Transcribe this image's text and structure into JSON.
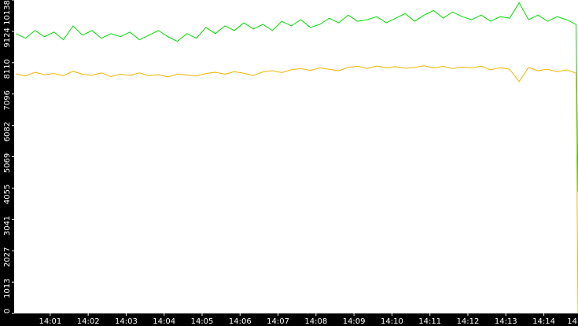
{
  "chart_data": {
    "type": "line",
    "x": [
      840.1,
      840.35,
      840.6,
      840.85,
      841.1,
      841.35,
      841.6,
      841.85,
      842.1,
      842.35,
      842.6,
      842.85,
      843.1,
      843.35,
      843.6,
      843.85,
      844.1,
      844.35,
      844.6,
      844.85,
      845.1,
      845.35,
      845.6,
      845.85,
      846.1,
      846.35,
      846.6,
      846.85,
      847.1,
      847.35,
      847.6,
      847.85,
      848.1,
      848.35,
      848.6,
      848.85,
      849.1,
      849.35,
      849.6,
      849.85,
      850.1,
      850.35,
      850.6,
      850.85,
      851.1,
      851.35,
      851.6,
      851.85,
      852.1,
      852.35,
      852.6,
      852.85,
      853.1,
      853.35,
      853.6,
      853.85,
      854.1,
      854.35,
      854.6,
      854.85,
      854.9
    ],
    "series": [
      {
        "color": "#00dd00",
        "values": [
          9050,
          8900,
          9150,
          8950,
          9100,
          8850,
          9300,
          9000,
          9150,
          8900,
          9050,
          8950,
          9100,
          8850,
          9000,
          9150,
          8950,
          8800,
          9050,
          8900,
          9250,
          9050,
          9300,
          9150,
          9400,
          9200,
          9350,
          9150,
          9450,
          9300,
          9500,
          9250,
          9350,
          9550,
          9400,
          9650,
          9450,
          9500,
          9600,
          9400,
          9550,
          9700,
          9450,
          9650,
          9800,
          9550,
          9750,
          9600,
          9500,
          9650,
          9450,
          9600,
          9550,
          10050,
          9500,
          9650,
          9450,
          9600,
          9500,
          9350,
          3940
        ]
      },
      {
        "color": "#f0b400",
        "values": [
          7750,
          7680,
          7800,
          7720,
          7760,
          7690,
          7830,
          7740,
          7700,
          7780,
          7660,
          7740,
          7700,
          7780,
          7690,
          7720,
          7650,
          7740,
          7710,
          7680,
          7760,
          7800,
          7740,
          7820,
          7770,
          7700,
          7810,
          7850,
          7790,
          7880,
          7920,
          7860,
          7940,
          7900,
          7850,
          7960,
          7990,
          7920,
          8000,
          7950,
          7980,
          7930,
          7960,
          8010,
          7940,
          7990,
          7920,
          7970,
          7940,
          8000,
          7880,
          7950,
          7900,
          7500,
          7960,
          7850,
          7900,
          7820,
          7880,
          7770,
          0
        ]
      }
    ],
    "xlim": [
      840.05,
      854.9
    ],
    "xticks": [
      {
        "value": 841,
        "label": "14:01"
      },
      {
        "value": 842,
        "label": "14:02"
      },
      {
        "value": 843,
        "label": "14:03"
      },
      {
        "value": 844,
        "label": "14:04"
      },
      {
        "value": 845,
        "label": "14:05"
      },
      {
        "value": 846,
        "label": "14:06"
      },
      {
        "value": 847,
        "label": "14:07"
      },
      {
        "value": 848,
        "label": "14:08"
      },
      {
        "value": 849,
        "label": "14:09"
      },
      {
        "value": 850,
        "label": "14:10"
      },
      {
        "value": 851,
        "label": "14:11"
      },
      {
        "value": 852,
        "label": "14:12"
      },
      {
        "value": 853,
        "label": "14:13"
      },
      {
        "value": 854,
        "label": "14:14"
      },
      {
        "value": 855,
        "label": "14"
      }
    ],
    "ylim": [
      0,
      10138
    ],
    "yticks": [
      0,
      1013,
      2027,
      3041,
      4055,
      5069,
      6082,
      7096,
      8110,
      9124,
      10138
    ],
    "grid": false
  }
}
